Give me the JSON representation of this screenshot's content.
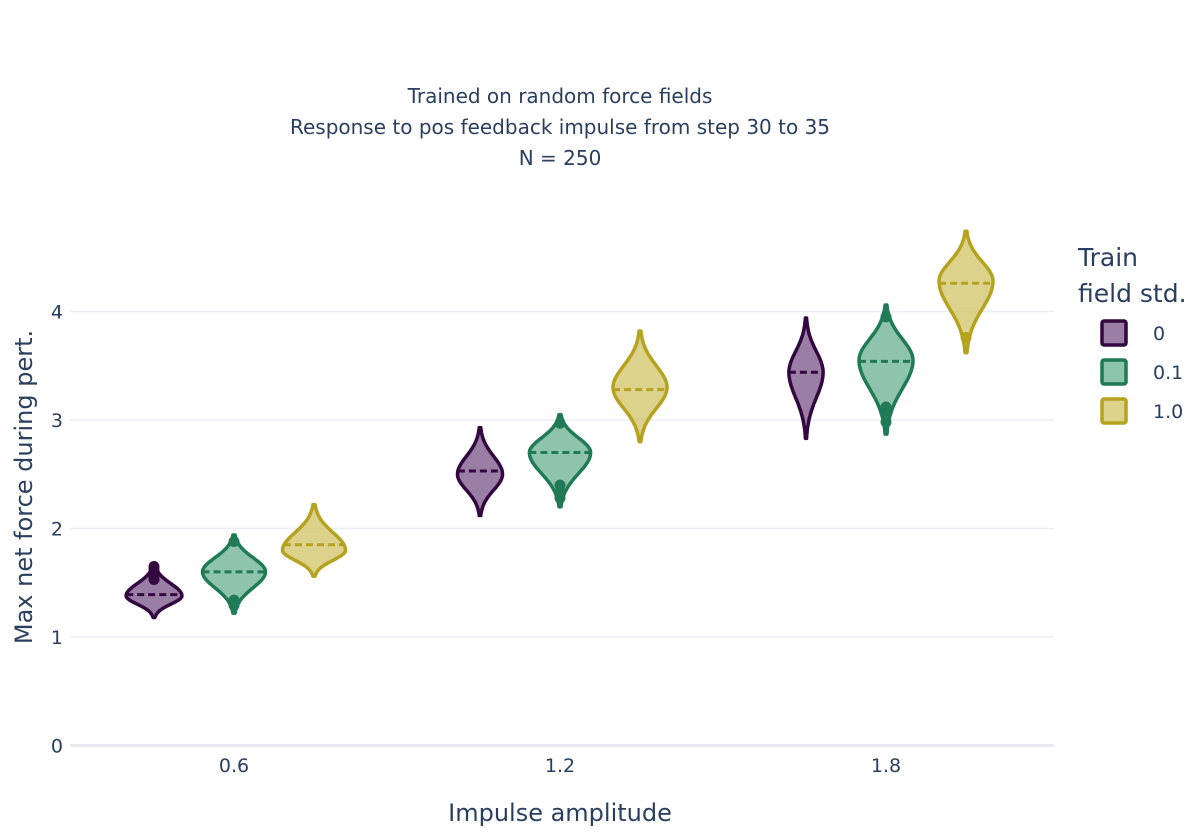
{
  "chart_data": {
    "type": "violin",
    "title_lines": [
      "Trained on random force fields",
      "Response to pos feedback impulse from step 30 to 35",
      "N = 250"
    ],
    "xlabel": "Impulse amplitude",
    "ylabel": "Max net force during pert.",
    "categories": [
      "0.6",
      "1.2",
      "1.8"
    ],
    "y_ticks": [
      "0",
      "1",
      "2",
      "3",
      "4"
    ],
    "ylim": [
      0,
      4.6
    ],
    "grid": true,
    "legend": {
      "title_lines": [
        "Train",
        "field std."
      ],
      "placement": "right"
    },
    "series": [
      {
        "name": "0",
        "color": "#33073f",
        "fill": "#7e5a8c",
        "violins": [
          {
            "category": "0.6",
            "min": 1.18,
            "max": 1.67,
            "mean": 1.39,
            "mode": 1.38,
            "peak_halfwidth": 0.62,
            "outliers": [
              1.53,
              1.56,
              1.59,
              1.62,
              1.65
            ]
          },
          {
            "category": "1.2",
            "min": 2.12,
            "max": 2.93,
            "mean": 2.53,
            "mode": 2.5,
            "peak_halfwidth": 0.5,
            "outliers": []
          },
          {
            "category": "1.8",
            "min": 2.83,
            "max": 3.94,
            "mean": 3.44,
            "mode": 3.44,
            "peak_halfwidth": 0.38,
            "outliers": []
          }
        ]
      },
      {
        "name": "0.1",
        "color": "#1f7a55",
        "fill": "#6fb395",
        "violins": [
          {
            "category": "0.6",
            "min": 1.22,
            "max": 1.94,
            "mean": 1.6,
            "mode": 1.6,
            "peak_halfwidth": 0.7,
            "outliers": [
              1.29,
              1.34,
              1.88
            ]
          },
          {
            "category": "1.2",
            "min": 2.2,
            "max": 3.05,
            "mean": 2.7,
            "mode": 2.7,
            "peak_halfwidth": 0.68,
            "outliers": [
              2.28,
              2.34,
              2.4,
              2.97
            ]
          },
          {
            "category": "1.8",
            "min": 2.87,
            "max": 4.06,
            "mean": 3.54,
            "mode": 3.55,
            "peak_halfwidth": 0.6,
            "outliers": [
              2.98,
              3.08,
              3.12,
              3.95
            ]
          }
        ]
      },
      {
        "name": "1.0",
        "color": "#b5a21f",
        "fill": "#d4c56a",
        "violins": [
          {
            "category": "0.6",
            "min": 1.56,
            "max": 2.22,
            "mean": 1.85,
            "mode": 1.8,
            "peak_halfwidth": 0.7,
            "outliers": []
          },
          {
            "category": "1.2",
            "min": 2.8,
            "max": 3.82,
            "mean": 3.28,
            "mode": 3.3,
            "peak_halfwidth": 0.6,
            "outliers": []
          },
          {
            "category": "1.8",
            "min": 3.62,
            "max": 4.74,
            "mean": 4.26,
            "mode": 4.28,
            "peak_halfwidth": 0.6,
            "outliers": [
              3.76
            ]
          }
        ]
      }
    ]
  }
}
